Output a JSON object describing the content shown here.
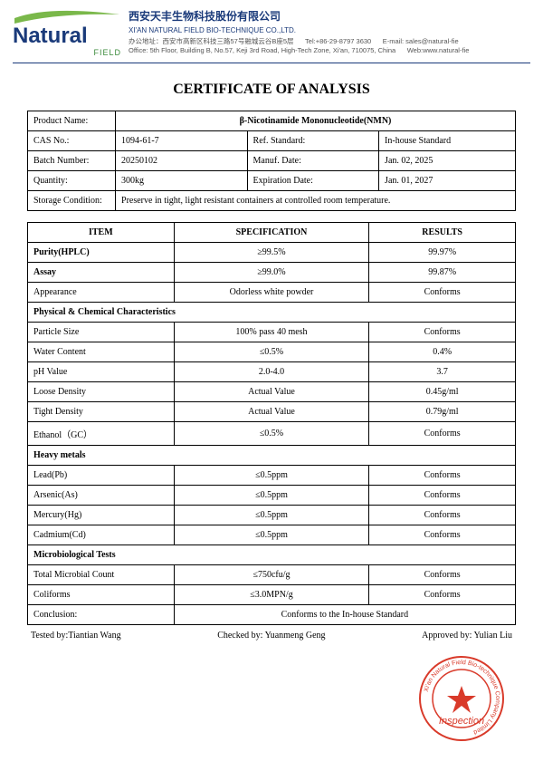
{
  "header": {
    "logo_text": "Natural",
    "logo_sub": "FIELD",
    "company_cn": "西安天丰生物科技股份有限公司",
    "company_en": "XI'AN NATURAL FIELD BIO-TECHNIQUE CO.,LTD.",
    "address_cn": "办公地址：西安市高新区科技三路57号融城云谷B座5层",
    "contact_tel": "Tel:+86-29-8797 3630",
    "contact_email": "E-mail: sales@natural-fie",
    "address_en": "Office: 5th Floor, Building B, No.57, Keji 3rd Road, High-Tech Zone, Xi'an, 710075, China",
    "contact_web": "Web:www.natural-fie"
  },
  "title": "CERTIFICATE OF ANALYSIS",
  "product_info": {
    "product_name_label": "Product Name:",
    "product_name": "β-Nicotinamide Mononucleotide(NMN)",
    "cas_label": "CAS No.:",
    "cas": "1094-61-7",
    "ref_std_label": "Ref. Standard:",
    "ref_std": "In-house Standard",
    "batch_label": "Batch Number:",
    "batch": "20250102",
    "manuf_label": "Manuf. Date:",
    "manuf": "Jan. 02, 2025",
    "qty_label": "Quantity:",
    "qty": "300kg",
    "exp_label": "Expiration Date:",
    "exp": "Jan. 01, 2027",
    "storage_label": "Storage Condition:",
    "storage": "Preserve in tight, light resistant containers at controlled room temperature."
  },
  "analysis": {
    "head_item": "ITEM",
    "head_spec": "SPECIFICATION",
    "head_res": "RESULTS",
    "rows": [
      {
        "item": "Purity(HPLC)",
        "spec": "≥99.5%",
        "res": "99.97%",
        "bold": true
      },
      {
        "item": "Assay",
        "spec": "≥99.0%",
        "res": "99.87%",
        "bold": true
      },
      {
        "item": "Appearance",
        "spec": "Odorless white powder",
        "res": "Conforms"
      }
    ],
    "section1": "Physical & Chemical Characteristics",
    "rows2": [
      {
        "item": "Particle Size",
        "spec": "100% pass 40 mesh",
        "res": "Conforms"
      },
      {
        "item": "Water Content",
        "spec": "≤0.5%",
        "res": "0.4%"
      },
      {
        "item": "pH Value",
        "spec": "2.0-4.0",
        "res": "3.7"
      },
      {
        "item": "Loose Density",
        "spec": "Actual Value",
        "res": "0.45g/ml"
      },
      {
        "item": "Tight Density",
        "spec": "Actual Value",
        "res": "0.79g/ml"
      },
      {
        "item": "Ethanol（GC）",
        "spec": "≤0.5%",
        "res": "Conforms"
      }
    ],
    "section2": "Heavy metals",
    "rows3": [
      {
        "item": "Lead(Pb)",
        "spec": "≤0.5ppm",
        "res": "Conforms"
      },
      {
        "item": "Arsenic(As)",
        "spec": "≤0.5ppm",
        "res": "Conforms"
      },
      {
        "item": "Mercury(Hg)",
        "spec": "≤0.5ppm",
        "res": "Conforms"
      },
      {
        "item": "Cadmium(Cd)",
        "spec": "≤0.5ppm",
        "res": "Conforms"
      }
    ],
    "section3": "Microbiological Tests",
    "rows4": [
      {
        "item": "Total Microbial Count",
        "spec": "≤750cfu/g",
        "res": "Conforms"
      },
      {
        "item": "Coliforms",
        "spec": "≤3.0MPN/g",
        "res": "Conforms"
      }
    ],
    "conclusion_label": "Conclusion:",
    "conclusion": "Conforms to the In-house Standard"
  },
  "signatures": {
    "tested": "Tested by:Tiantian Wang",
    "checked": "Checked by: Yuanmeng Geng",
    "approved": "Approved by: Yulian Liu"
  },
  "stamp": {
    "inspection": "Inspection",
    "circle": "Xi'an Natural Field Bio-technique Company Limited"
  },
  "colors": {
    "brand_blue": "#1a3a7a",
    "brand_green": "#3a8a3a",
    "stamp_red": "#d93a2a"
  }
}
